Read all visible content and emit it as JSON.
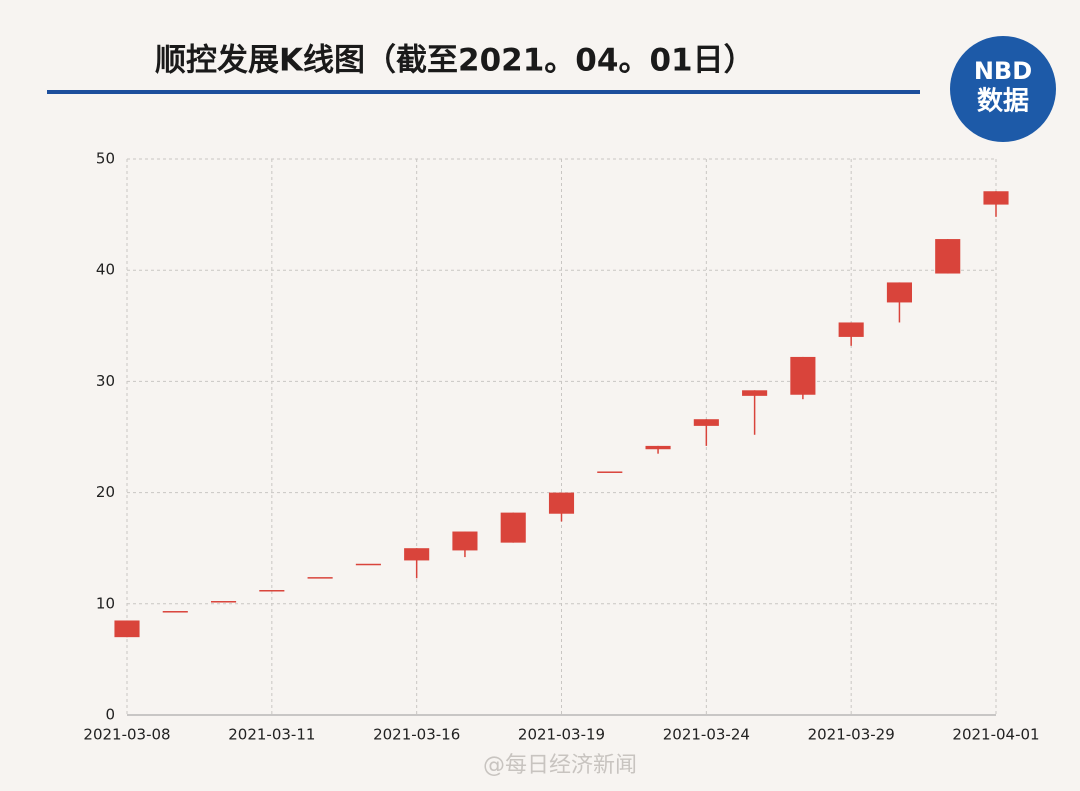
{
  "chart_data": {
    "type": "candlestick",
    "title": "顺控发展K线图（截至2021。04。01日）",
    "logo": [
      "NBD",
      "数据"
    ],
    "watermark": "@每日经济新闻",
    "categories": [
      "2021-03-08",
      null,
      null,
      "2021-03-11",
      null,
      null,
      "2021-03-16",
      null,
      null,
      "2021-03-19",
      null,
      null,
      "2021-03-24",
      null,
      null,
      "2021-03-29",
      null,
      null,
      "2021-04-01"
    ],
    "open": [
      7.0,
      9.35,
      10.25,
      11.24,
      12.4,
      13.6,
      13.9,
      14.8,
      15.5,
      18.1,
      21.9,
      23.9,
      26.0,
      28.7,
      28.8,
      34.0,
      37.1,
      39.7,
      45.9
    ],
    "high": [
      8.5,
      9.35,
      10.25,
      11.24,
      12.4,
      13.6,
      15.0,
      16.5,
      18.2,
      20.0,
      21.9,
      24.2,
      26.6,
      29.2,
      32.2,
      35.3,
      38.9,
      42.8,
      47.1
    ],
    "low": [
      7.0,
      9.35,
      10.25,
      11.24,
      12.4,
      13.6,
      12.3,
      14.2,
      15.5,
      17.4,
      21.9,
      23.5,
      24.2,
      25.2,
      28.4,
      33.2,
      35.3,
      39.7,
      44.8
    ],
    "close": [
      8.5,
      9.35,
      10.25,
      11.24,
      12.4,
      13.6,
      15.0,
      16.5,
      18.2,
      20.0,
      21.9,
      24.2,
      26.6,
      29.2,
      32.2,
      35.3,
      38.9,
      42.8,
      47.1
    ],
    "color": "#d9443b",
    "ylim": [
      0,
      50
    ],
    "yticks": [
      0,
      10,
      20,
      30,
      40,
      50
    ],
    "grid": true
  }
}
